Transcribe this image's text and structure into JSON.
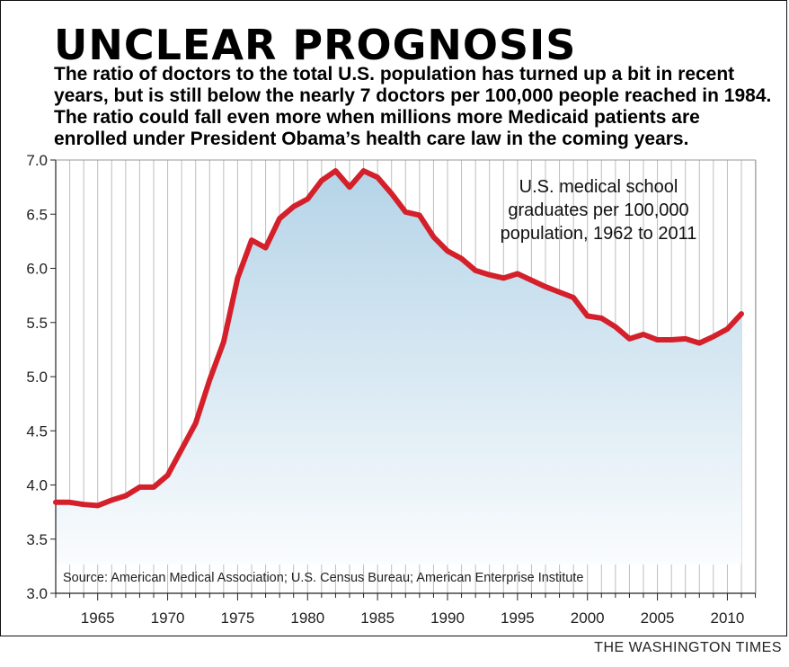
{
  "header": {
    "title": "UNCLEAR PROGNOSIS",
    "subtitle": "The ratio of doctors to the total U.S. population has turned up a bit in recent years, but is still below the nearly 7 doctors per 100,000 people reached in 1984. The ratio could fall even more when millions more Medicaid patients are enrolled under President Obama’s health care law in the coming years."
  },
  "footer": {
    "credit": "THE WASHINGTON TIMES"
  },
  "chart_data": {
    "type": "area",
    "annotation": [
      "U.S. medical school",
      "graduates per 100,000",
      "population, 1962 to 2011"
    ],
    "source": "Source: American Medical Association; U.S. Census Bureau; American Enterprise Institute",
    "xlim": [
      1962,
      2011
    ],
    "ylim": [
      3.0,
      7.0
    ],
    "x_ticks": [
      1965,
      1970,
      1975,
      1980,
      1985,
      1990,
      1995,
      2000,
      2005,
      2010
    ],
    "y_ticks": [
      "3.0",
      "3.5",
      "4.0",
      "4.5",
      "5.0",
      "5.5",
      "6.0",
      "6.5",
      "7.0"
    ],
    "grid": "vertical",
    "line_color": "#d4202a",
    "fill_top_color": "#b5d4e8",
    "fill_bottom_color": "#ffffff",
    "series": [
      {
        "x": [
          1962,
          1963,
          1964,
          1965,
          1966,
          1967,
          1968,
          1969,
          1970,
          1971,
          1972,
          1973,
          1974,
          1975,
          1976,
          1977,
          1978,
          1979,
          1980,
          1981,
          1982,
          1983,
          1984,
          1985,
          1986,
          1987,
          1988,
          1989,
          1990,
          1991,
          1992,
          1993,
          1994,
          1995,
          1996,
          1997,
          1998,
          1999,
          2000,
          2001,
          2002,
          2003,
          2004,
          2005,
          2006,
          2007,
          2008,
          2009,
          2010,
          2011
        ],
        "values": [
          3.84,
          3.84,
          3.82,
          3.81,
          3.86,
          3.9,
          3.98,
          3.98,
          4.09,
          4.33,
          4.57,
          4.97,
          5.32,
          5.91,
          6.26,
          6.19,
          6.46,
          6.57,
          6.64,
          6.81,
          6.9,
          6.75,
          6.9,
          6.84,
          6.69,
          6.52,
          6.49,
          6.29,
          6.16,
          6.09,
          5.98,
          5.94,
          5.91,
          5.95,
          5.89,
          5.83,
          5.78,
          5.73,
          5.56,
          5.54,
          5.46,
          5.35,
          5.39,
          5.34,
          5.34,
          5.35,
          5.31,
          5.37,
          5.44,
          5.58
        ]
      }
    ]
  }
}
